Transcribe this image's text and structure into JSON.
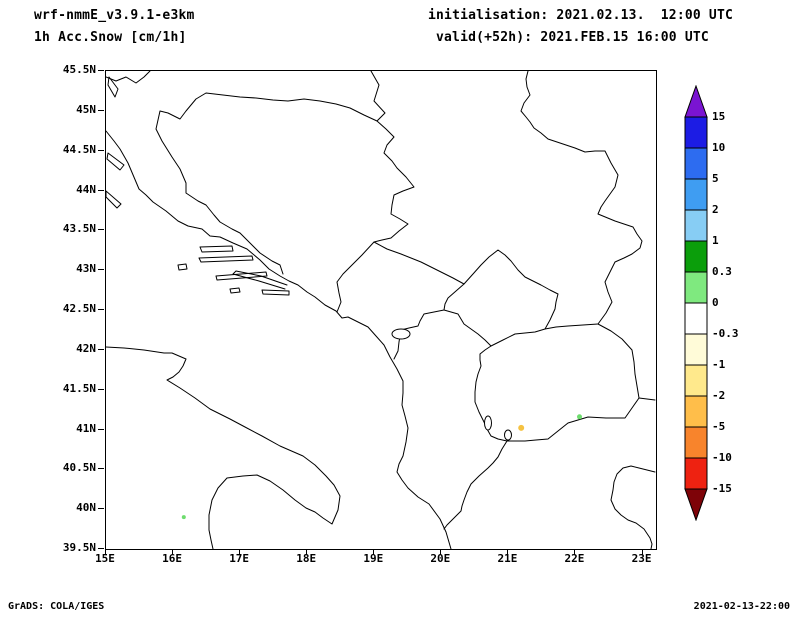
{
  "header": {
    "model_title": "wrf-nmmE_v3.9.1-e3km",
    "field_title": "1h Acc.Snow [cm/1h]",
    "init_line": "initialisation: 2021.02.13.  12:00 UTC",
    "valid_line": "valid(+52h): 2021.FEB.15 16:00 UTC"
  },
  "footer": {
    "left": "GrADS: COLA/IGES",
    "right": "2021-02-13-22:00"
  },
  "map": {
    "lat_tick_labels": [
      "45.5N",
      "45N",
      "44.5N",
      "44N",
      "43.5N",
      "43N",
      "42.5N",
      "42N",
      "41.5N",
      "41N",
      "40.5N",
      "40N",
      "39.5N"
    ],
    "lon_tick_labels": [
      "15E",
      "16E",
      "17E",
      "18E",
      "19E",
      "20E",
      "21E",
      "22E",
      "23E"
    ],
    "extent": {
      "lon_min": 15.0,
      "lon_max": 23.2,
      "lat_min": 39.5,
      "lat_max": 45.5
    }
  },
  "colorbar": {
    "boundary_labels": [
      "15",
      "10",
      "5",
      "2",
      "1",
      "0.3",
      "0",
      "-0.3",
      "-1",
      "-2",
      "-5",
      "-10",
      "-15"
    ],
    "segment_colors": [
      "#1c1ce4",
      "#2d6cf0",
      "#3f9df2",
      "#87cdf4",
      "#0b9e0b",
      "#7fe97f",
      "#ffffff",
      "#fffbd8",
      "#ffe98c",
      "#ffbe4a",
      "#f8842c",
      "#ee2211"
    ],
    "arrow_top_color": "#7a14d2",
    "arrow_bottom_color": "#7e0308"
  },
  "snow_spots": [
    {
      "lon": 21.19,
      "lat": 41.02,
      "color": "#f5c242",
      "r": 3
    },
    {
      "lon": 22.06,
      "lat": 41.16,
      "color": "#6edc6e",
      "r": 2.5
    },
    {
      "lon": 16.16,
      "lat": 39.9,
      "color": "#6edc6e",
      "r": 2
    }
  ]
}
